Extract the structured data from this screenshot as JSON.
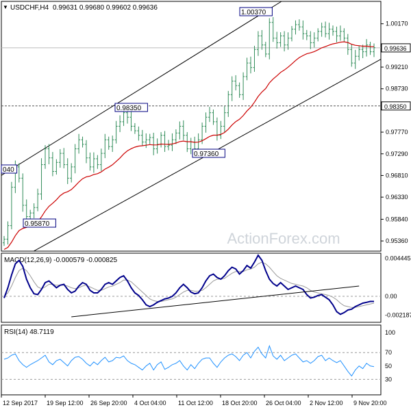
{
  "header": {
    "symbol_label": "USDCHF,H4",
    "ohlc": "0.99631 0.99680 0.99602 0.99636"
  },
  "watermark": "ActionForex.com",
  "colors": {
    "candle": "#2e8b57",
    "ma": "#cc0000",
    "macd_line": "#00008b",
    "signal_line": "#999999",
    "rsi_line": "#1e90ff",
    "channel": "#000000",
    "tag_bg": "#ffffff",
    "level_line": "#555555",
    "dashed_guides": "#999999",
    "grid_frame": "#000000"
  },
  "chart_data": [
    {
      "type": "candlestick",
      "panel": "price",
      "ylim": [
        0.9518,
        1.0062
      ],
      "yticks": [
        "1.00170",
        "0.99210",
        "0.98730",
        "0.97770",
        "0.97290",
        "0.96810",
        "0.96330",
        "0.95840",
        "0.95360"
      ],
      "current_price": "0.99636",
      "level_tags": [
        "0.98350"
      ],
      "annotations": [
        {
          "text": "1.00370",
          "x_index": 71
        },
        {
          "text": "0.98350",
          "x_index": 31
        },
        {
          "text": "0.97360",
          "x_index": 51
        },
        {
          "text": "0.95870",
          "x_index": 6
        },
        {
          "text": "040",
          "x_index": 0
        }
      ],
      "close": [
        0.954,
        0.957,
        0.9655,
        0.97,
        0.9675,
        0.9615,
        0.959,
        0.9598,
        0.961,
        0.964,
        0.9705,
        0.974,
        0.972,
        0.969,
        0.971,
        0.973,
        0.9705,
        0.9675,
        0.97,
        0.974,
        0.976,
        0.975,
        0.972,
        0.97,
        0.9718,
        0.9705,
        0.973,
        0.976,
        0.9745,
        0.976,
        0.979,
        0.98,
        0.982,
        0.981,
        0.979,
        0.978,
        0.977,
        0.9755,
        0.976,
        0.9765,
        0.974,
        0.975,
        0.977,
        0.9745,
        0.9748,
        0.976,
        0.9775,
        0.979,
        0.977,
        0.974,
        0.9755,
        0.974,
        0.976,
        0.979,
        0.981,
        0.982,
        0.98,
        0.977,
        0.979,
        0.982,
        0.986,
        0.989,
        0.988,
        0.986,
        0.99,
        0.993,
        0.992,
        0.996,
        0.999,
        0.997,
        0.995,
        1.002,
        0.9985,
        0.9975,
        0.999,
        0.997,
        0.9985,
        1.0005,
        1.0015,
        1.001,
        0.9995,
        0.999,
        0.9975,
        0.9985,
        1.0,
        1.001,
        0.9995,
        1.0005,
        1.0,
        0.999,
        1.0,
        0.9985,
        0.996,
        0.993,
        0.9945,
        0.996,
        0.9955,
        0.997,
        0.9955,
        0.9964
      ],
      "ma_period_hint": "red moving average",
      "channel": {
        "upper": [
          {
            "x_index": 0,
            "y": 0.9685
          },
          {
            "x_index": 72,
            "y": 1.0055
          }
        ],
        "lower": [
          {
            "x_index": 10,
            "y": 0.9523
          },
          {
            "x_index": 99,
            "y": 0.993
          }
        ]
      },
      "hline": 0.9835
    },
    {
      "type": "line",
      "panel": "macd",
      "label": "MACD(12,26,9) -0.000579 -0.000825",
      "ylim": [
        -0.0028,
        0.0048
      ],
      "yticks": [
        "0.004445",
        "0.00",
        "-0.002187"
      ],
      "zero_line": 0,
      "macd": [
        -0.0002,
        0.001,
        0.0025,
        0.0038,
        0.0042,
        0.0035,
        0.002,
        0.001,
        0.0003,
        0.0002,
        0.0008,
        0.0016,
        0.0018,
        0.0014,
        0.001,
        0.0013,
        0.0014,
        0.0008,
        0.0004,
        0.0006,
        0.0012,
        0.0016,
        0.0014,
        0.0007,
        0.0004,
        0.0004,
        0.0008,
        0.0014,
        0.0016,
        0.0014,
        0.0018,
        0.0022,
        0.0024,
        0.0018,
        0.001,
        0.0004,
        0.0001,
        -0.0004,
        -0.001,
        -0.0012,
        -0.001,
        -0.0007,
        -0.0005,
        -0.0003,
        -0.0002,
        0.0,
        0.0004,
        0.001,
        0.0014,
        0.001,
        0.0005,
        0.0003,
        0.0004,
        0.001,
        0.0018,
        0.0024,
        0.0026,
        0.0022,
        0.002,
        0.0024,
        0.003,
        0.0034,
        0.0032,
        0.0026,
        0.003,
        0.0036,
        0.0033,
        0.004,
        0.0048,
        0.0042,
        0.003,
        0.002,
        0.0015,
        0.0012,
        0.0016,
        0.0012,
        0.0008,
        0.001,
        0.0012,
        0.001,
        0.0008,
        0.0002,
        -0.0002,
        -0.0001,
        0.0001,
        0.0002,
        -0.0001,
        -0.0004,
        -0.001,
        -0.0018,
        -0.0021,
        -0.0019,
        -0.0016,
        -0.0015,
        -0.0012,
        -0.001,
        -0.0008,
        -0.0007,
        -0.0006,
        -0.0006
      ],
      "signal": [
        0.0,
        0.0004,
        0.0012,
        0.0022,
        0.003,
        0.0033,
        0.003,
        0.0024,
        0.0017,
        0.0011,
        0.0009,
        0.0011,
        0.0014,
        0.0014,
        0.0013,
        0.0013,
        0.0013,
        0.0012,
        0.001,
        0.0009,
        0.001,
        0.0012,
        0.0013,
        0.0011,
        0.0009,
        0.0007,
        0.0007,
        0.0009,
        0.0011,
        0.0012,
        0.0014,
        0.0016,
        0.0019,
        0.0019,
        0.0017,
        0.0013,
        0.0009,
        0.0005,
        0.0001,
        -0.0003,
        -0.0005,
        -0.0006,
        -0.0006,
        -0.0005,
        -0.0004,
        -0.0003,
        -0.0001,
        0.0002,
        0.0005,
        0.0007,
        0.0007,
        0.0006,
        0.0006,
        0.0007,
        0.001,
        0.0014,
        0.0018,
        0.002,
        0.002,
        0.0021,
        0.0024,
        0.0027,
        0.0029,
        0.0029,
        0.0029,
        0.0031,
        0.0032,
        0.0034,
        0.0038,
        0.004,
        0.0038,
        0.0034,
        0.0029,
        0.0024,
        0.0021,
        0.0019,
        0.0017,
        0.0015,
        0.0014,
        0.0013,
        0.0012,
        0.001,
        0.0007,
        0.0005,
        0.0004,
        0.0003,
        0.0002,
        0.0001,
        -0.0001,
        -0.0004,
        -0.0008,
        -0.0011,
        -0.0012,
        -0.0013,
        -0.0013,
        -0.0012,
        -0.0011,
        -0.001,
        -0.0009,
        -0.0008
      ],
      "trendline": [
        {
          "x_index": 18,
          "y": -0.0024
        },
        {
          "x_index": 95,
          "y": 0.0012
        }
      ]
    },
    {
      "type": "line",
      "panel": "rsi",
      "label": "RSI(14) 48.7119",
      "ylim": [
        10,
        108
      ],
      "yticks": [
        "100",
        "70",
        "50",
        "30",
        "0"
      ],
      "dashed_levels": [
        70,
        30
      ],
      "values": [
        60,
        62,
        66,
        68,
        58,
        52,
        48,
        52,
        55,
        58,
        62,
        66,
        56,
        52,
        58,
        60,
        55,
        50,
        58,
        63,
        64,
        60,
        54,
        50,
        56,
        52,
        58,
        63,
        56,
        58,
        63,
        62,
        65,
        58,
        54,
        52,
        48,
        44,
        50,
        54,
        44,
        52,
        56,
        45,
        48,
        52,
        54,
        58,
        50,
        44,
        52,
        46,
        54,
        60,
        62,
        62,
        54,
        48,
        56,
        62,
        66,
        68,
        64,
        58,
        66,
        70,
        62,
        72,
        78,
        68,
        62,
        80,
        65,
        60,
        66,
        58,
        62,
        66,
        68,
        62,
        56,
        58,
        54,
        58,
        64,
        66,
        58,
        62,
        58,
        55,
        58,
        50,
        42,
        35,
        44,
        50,
        46,
        54,
        50,
        49
      ]
    }
  ],
  "x_axis": {
    "labels": [
      "12 Sep 2017",
      "19 Sep 12:00",
      "26 Sep 20:00",
      "4 Oct 04:00",
      "11 Oct 12:00",
      "18 Oct 20:00",
      "26 Oct 04:00",
      "2 Nov 12:00",
      "9 Nov 20:00"
    ]
  }
}
